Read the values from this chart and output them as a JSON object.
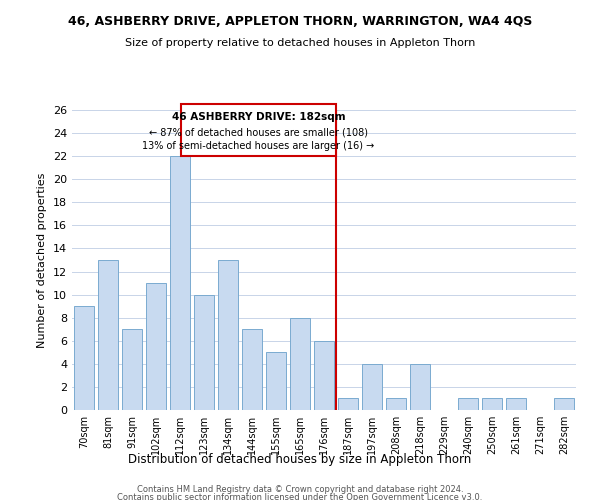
{
  "title": "46, ASHBERRY DRIVE, APPLETON THORN, WARRINGTON, WA4 4QS",
  "subtitle": "Size of property relative to detached houses in Appleton Thorn",
  "xlabel": "Distribution of detached houses by size in Appleton Thorn",
  "ylabel": "Number of detached properties",
  "bar_labels": [
    "70sqm",
    "81sqm",
    "91sqm",
    "102sqm",
    "112sqm",
    "123sqm",
    "134sqm",
    "144sqm",
    "155sqm",
    "165sqm",
    "176sqm",
    "187sqm",
    "197sqm",
    "208sqm",
    "218sqm",
    "229sqm",
    "240sqm",
    "250sqm",
    "261sqm",
    "271sqm",
    "282sqm"
  ],
  "bar_values": [
    9,
    13,
    7,
    11,
    22,
    10,
    13,
    7,
    5,
    8,
    6,
    1,
    4,
    1,
    4,
    0,
    1,
    1,
    1,
    0,
    1
  ],
  "bar_color": "#c8daf0",
  "bar_edge_color": "#7aaad0",
  "ylim": [
    0,
    26
  ],
  "yticks": [
    0,
    2,
    4,
    6,
    8,
    10,
    12,
    14,
    16,
    18,
    20,
    22,
    24,
    26
  ],
  "marker_label": "46 ASHBERRY DRIVE: 182sqm",
  "annotation_line1": "← 87% of detached houses are smaller (108)",
  "annotation_line2": "13% of semi-detached houses are larger (16) →",
  "vline_color": "#cc0000",
  "annotation_box_edge": "#cc0000",
  "footer_line1": "Contains HM Land Registry data © Crown copyright and database right 2024.",
  "footer_line2": "Contains public sector information licensed under the Open Government Licence v3.0.",
  "background_color": "#ffffff",
  "grid_color": "#c8d4e8"
}
